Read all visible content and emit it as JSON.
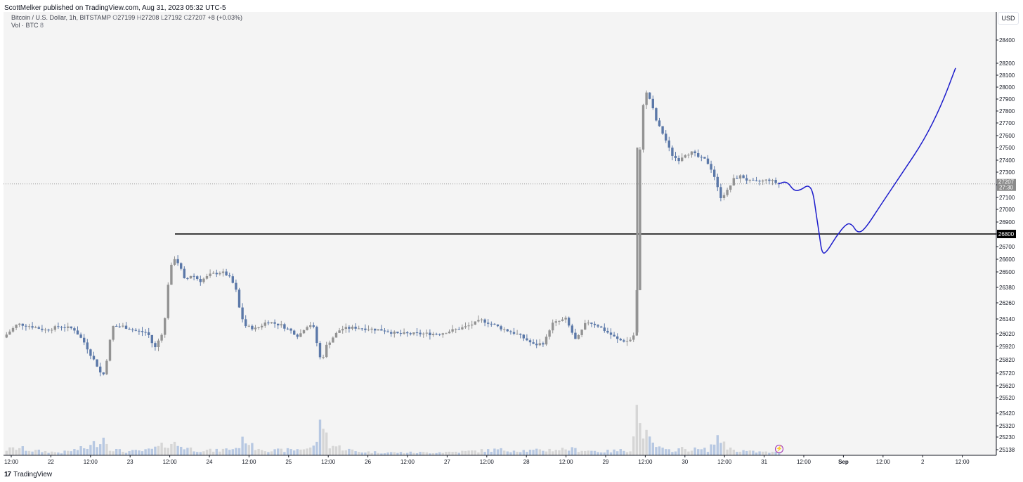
{
  "header": {
    "published_text": "ScottMelker published on TradingView.com, Aug 31, 2023 05:32 UTC-5"
  },
  "legend": {
    "symbol": "Bitcoin / U.S. Dollar, 1h, BITSTAMP",
    "open_label": "O",
    "open": "27199",
    "high_label": "H",
    "high": "27208",
    "low_label": "L",
    "low": "27192",
    "close_label": "C",
    "close": "27207",
    "change": "+8 (+0.03%)",
    "volume_label": "Vol · BTC",
    "volume_value": "8"
  },
  "price_scale": {
    "currency": "USD",
    "current_price": "27207",
    "countdown": "27:30",
    "level_label": "26800"
  },
  "footer": {
    "brand": "TradingView",
    "logo": "17"
  },
  "colors": {
    "background": "#f4f4f4",
    "up_candle": "#939393",
    "down_candle": "#5b78a8",
    "volume_up": "#d6d6d6",
    "volume_down": "#b7c8e2",
    "projection_line": "#1c1ccc",
    "level_line": "#000000",
    "lightning": "#9c27b0"
  },
  "icons": {
    "lightning": "lightning-icon",
    "logo": "tradingview-logo-icon"
  },
  "chart_data": {
    "type": "candlestick",
    "timeframe": "1h",
    "y_ticks": [
      25138,
      25230,
      25320,
      25420,
      25520,
      25620,
      25720,
      25820,
      25920,
      26020,
      26140,
      26260,
      26380,
      26500,
      26600,
      26700,
      26800,
      26900,
      27000,
      27100,
      27200,
      27300,
      27400,
      27500,
      27600,
      27700,
      27800,
      27900,
      28000,
      28100,
      28200,
      28400
    ],
    "x_ticks": [
      "12:00",
      "22",
      "12:00",
      "23",
      "12:00",
      "24",
      "12:00",
      "25",
      "12:00",
      "26",
      "12:00",
      "27",
      "12:00",
      "28",
      "12:00",
      "29",
      "12:00",
      "30",
      "12:00",
      "31",
      "12:00",
      "Sep",
      "12:00",
      "2",
      "12:00"
    ],
    "horizontal_level": 26800,
    "last_price": 27207,
    "price_path": [
      [
        0,
        25990
      ],
      [
        20,
        26100
      ],
      [
        40,
        26080
      ],
      [
        60,
        26050
      ],
      [
        80,
        26080
      ],
      [
        100,
        26060
      ],
      [
        115,
        25950
      ],
      [
        125,
        25850
      ],
      [
        135,
        25760
      ],
      [
        141,
        25680
      ],
      [
        148,
        25850
      ],
      [
        155,
        26080
      ],
      [
        170,
        26080
      ],
      [
        190,
        26040
      ],
      [
        205,
        26030
      ],
      [
        215,
        25900
      ],
      [
        225,
        26020
      ],
      [
        230,
        26150
      ],
      [
        235,
        26450
      ],
      [
        242,
        26620
      ],
      [
        250,
        26560
      ],
      [
        258,
        26430
      ],
      [
        268,
        26480
      ],
      [
        280,
        26430
      ],
      [
        295,
        26480
      ],
      [
        310,
        26500
      ],
      [
        320,
        26470
      ],
      [
        330,
        26380
      ],
      [
        337,
        26180
      ],
      [
        345,
        26080
      ],
      [
        360,
        26060
      ],
      [
        375,
        26120
      ],
      [
        395,
        26090
      ],
      [
        410,
        26040
      ],
      [
        420,
        26000
      ],
      [
        430,
        26080
      ],
      [
        440,
        26100
      ],
      [
        447,
        25920
      ],
      [
        452,
        25800
      ],
      [
        460,
        25930
      ],
      [
        470,
        26000
      ],
      [
        480,
        26060
      ],
      [
        500,
        26070
      ],
      [
        520,
        26060
      ],
      [
        540,
        26050
      ],
      [
        560,
        26020
      ],
      [
        590,
        26020
      ],
      [
        620,
        26020
      ],
      [
        640,
        26050
      ],
      [
        660,
        26080
      ],
      [
        680,
        26130
      ],
      [
        695,
        26100
      ],
      [
        710,
        26060
      ],
      [
        730,
        26020
      ],
      [
        745,
        25970
      ],
      [
        755,
        25930
      ],
      [
        770,
        25950
      ],
      [
        780,
        26100
      ],
      [
        800,
        26140
      ],
      [
        815,
        25960
      ],
      [
        830,
        26120
      ],
      [
        845,
        26090
      ],
      [
        860,
        26030
      ],
      [
        875,
        25970
      ],
      [
        890,
        25960
      ],
      [
        900,
        26030
      ],
      [
        903,
        26780
      ],
      [
        906,
        27500
      ],
      [
        912,
        27980
      ],
      [
        920,
        27900
      ],
      [
        930,
        27700
      ],
      [
        940,
        27600
      ],
      [
        950,
        27450
      ],
      [
        960,
        27400
      ],
      [
        970,
        27450
      ],
      [
        980,
        27460
      ],
      [
        990,
        27420
      ],
      [
        1000,
        27400
      ],
      [
        1010,
        27300
      ],
      [
        1020,
        27100
      ],
      [
        1030,
        27150
      ],
      [
        1040,
        27250
      ],
      [
        1050,
        27270
      ],
      [
        1060,
        27230
      ],
      [
        1070,
        27220
      ],
      [
        1080,
        27230
      ],
      [
        1090,
        27240
      ],
      [
        1103,
        27207
      ]
    ],
    "volume_path": [
      [
        0,
        6
      ],
      [
        20,
        8
      ],
      [
        40,
        5
      ],
      [
        60,
        4
      ],
      [
        80,
        3
      ],
      [
        100,
        6
      ],
      [
        120,
        9
      ],
      [
        141,
        20
      ],
      [
        150,
        7
      ],
      [
        170,
        4
      ],
      [
        200,
        5
      ],
      [
        220,
        9
      ],
      [
        235,
        14
      ],
      [
        250,
        10
      ],
      [
        270,
        6
      ],
      [
        300,
        5
      ],
      [
        330,
        8
      ],
      [
        343,
        20
      ],
      [
        350,
        10
      ],
      [
        380,
        5
      ],
      [
        410,
        6
      ],
      [
        440,
        9
      ],
      [
        452,
        40
      ],
      [
        460,
        12
      ],
      [
        500,
        4
      ],
      [
        550,
        3
      ],
      [
        600,
        3
      ],
      [
        650,
        4
      ],
      [
        700,
        6
      ],
      [
        750,
        5
      ],
      [
        800,
        7
      ],
      [
        850,
        4
      ],
      [
        890,
        6
      ],
      [
        900,
        55
      ],
      [
        904,
        30
      ],
      [
        910,
        25
      ],
      [
        920,
        12
      ],
      [
        940,
        5
      ],
      [
        960,
        7
      ],
      [
        1000,
        6
      ],
      [
        1010,
        15
      ],
      [
        1020,
        18
      ],
      [
        1030,
        7
      ],
      [
        1060,
        4
      ],
      [
        1100,
        3
      ]
    ],
    "projection": [
      [
        1103,
        27207
      ],
      [
        1115,
        27230
      ],
      [
        1125,
        27150
      ],
      [
        1135,
        27160
      ],
      [
        1145,
        27200
      ],
      [
        1152,
        27150
      ],
      [
        1157,
        26950
      ],
      [
        1161,
        26800
      ],
      [
        1165,
        26640
      ],
      [
        1172,
        26660
      ],
      [
        1185,
        26780
      ],
      [
        1200,
        26890
      ],
      [
        1208,
        26880
      ],
      [
        1215,
        26810
      ],
      [
        1225,
        26830
      ],
      [
        1250,
        27050
      ],
      [
        1280,
        27300
      ],
      [
        1310,
        27560
      ],
      [
        1335,
        27850
      ],
      [
        1355,
        28160
      ]
    ]
  }
}
